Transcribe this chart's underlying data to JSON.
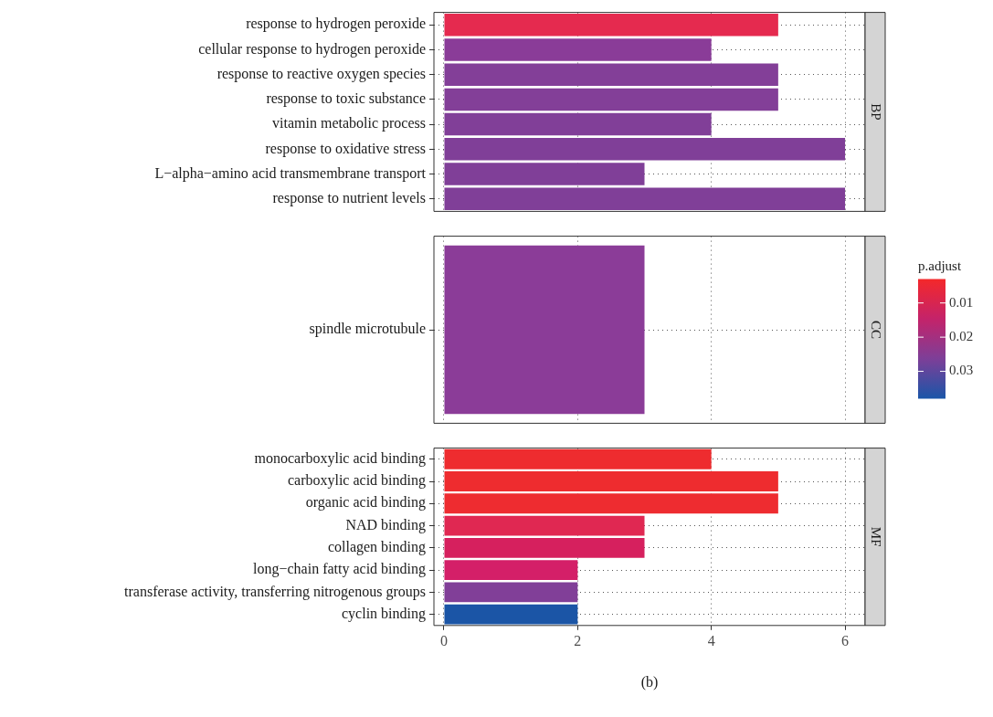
{
  "chart_data": [
    {
      "type": "bar",
      "orientation": "horizontal",
      "title": "BP",
      "categories": [
        "response to hydrogen peroxide",
        "cellular response to hydrogen peroxide",
        "response to reactive oxygen species",
        "response to toxic substance",
        "vitamin metabolic process",
        "response to oxidative stress",
        "L−alpha−amino acid transmembrane transport",
        "response to nutrient levels"
      ],
      "values": [
        5,
        4,
        5,
        5,
        4,
        6,
        3,
        6
      ],
      "colors": [
        "#e52a4f",
        "#8a3c98",
        "#833f98",
        "#833f98",
        "#813f98",
        "#803f98",
        "#803f98",
        "#803f98"
      ],
      "xlim": [
        -0.15,
        6.3
      ],
      "xticks": [
        0,
        2,
        4,
        6
      ],
      "grid": true,
      "tick_labels": "y"
    },
    {
      "type": "bar",
      "orientation": "horizontal",
      "title": "CC",
      "categories": [
        "spindle microtubule"
      ],
      "values": [
        3
      ],
      "colors": [
        "#8b3c98"
      ],
      "xlim": [
        -0.15,
        6.3
      ],
      "xticks": [
        0,
        2,
        4,
        6
      ],
      "grid": true,
      "tick_labels": "y",
      "clabel": "p.adjust",
      "clim": [
        0.003,
        0.038
      ],
      "cticks": [
        0.01,
        0.02,
        0.03
      ]
    },
    {
      "type": "bar",
      "orientation": "horizontal",
      "title": "MF",
      "categories": [
        "monocarboxylic acid binding",
        "carboxylic acid binding",
        "organic acid binding",
        "NAD binding",
        "collagen binding",
        "long−chain fatty acid binding",
        "transferase activity, transferring nitrogenous groups",
        "cyclin binding"
      ],
      "values": [
        4,
        5,
        5,
        3,
        3,
        2,
        2,
        2
      ],
      "colors": [
        "#ee2c2f",
        "#ee2c2f",
        "#ee2c30",
        "#e02852",
        "#d6205e",
        "#d41f68",
        "#813f98",
        "#1b55a6"
      ],
      "xlim": [
        -0.15,
        6.3
      ],
      "xticks": [
        0,
        2,
        4,
        6
      ],
      "grid": true,
      "annotations": [
        "(b)"
      ]
    }
  ]
}
